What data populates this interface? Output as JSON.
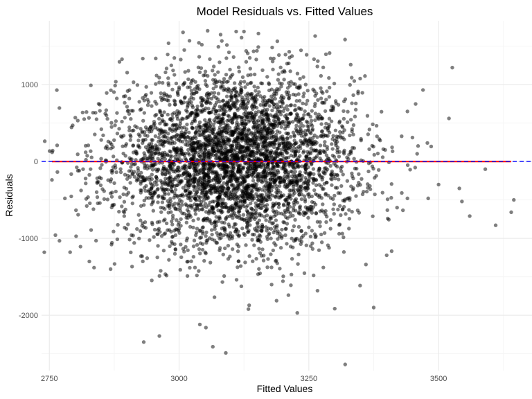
{
  "chart_data": {
    "type": "scatter",
    "title": "Model Residuals vs. Fitted Values",
    "xlabel": "Fitted Values",
    "ylabel": "Residuals",
    "xlim": [
      2735,
      3680
    ],
    "ylim": [
      -2720,
      1830
    ],
    "x_ticks": [
      2750,
      3000,
      3250,
      3500
    ],
    "y_ticks": [
      -2000,
      -1000,
      0,
      1000
    ],
    "grid": true,
    "legend": "none",
    "colors": {
      "points": "#000000",
      "smooth_line": "#ff0000",
      "reference_line": "#0000ff",
      "grid_major": "#ebebeb",
      "grid_minor": "#f5f5f5"
    },
    "reference_line": {
      "y": 0,
      "style": "dashed"
    },
    "smooth_line": {
      "x": [
        2755,
        3640
      ],
      "y": [
        0,
        0
      ]
    },
    "distribution": {
      "n": 4200,
      "x_mean": 3110,
      "x_sd": 115,
      "y_sd": 560
    },
    "points": [
      [
        2755,
        -240
      ],
      [
        2765,
        210
      ],
      [
        2780,
        -480
      ],
      [
        2790,
        -1180
      ],
      [
        2795,
        470
      ],
      [
        2800,
        570
      ],
      [
        2805,
        -120
      ],
      [
        2815,
        -100
      ],
      [
        2820,
        120
      ],
      [
        2825,
        210
      ],
      [
        2830,
        990
      ],
      [
        2835,
        -620
      ],
      [
        2840,
        -1030
      ],
      [
        2845,
        750
      ],
      [
        2850,
        280
      ],
      [
        2860,
        600
      ],
      [
        2868,
        -1400
      ],
      [
        2870,
        450
      ],
      [
        2880,
        820
      ],
      [
        2890,
        1330
      ],
      [
        2895,
        -860
      ],
      [
        2955,
        1340
      ],
      [
        2962,
        -2270
      ],
      [
        2985,
        1250
      ],
      [
        3010,
        1450
      ],
      [
        3020,
        1570
      ],
      [
        3040,
        -2120
      ],
      [
        3055,
        1700
      ],
      [
        3065,
        -2410
      ],
      [
        3080,
        1650
      ],
      [
        3090,
        -2490
      ],
      [
        3110,
        1690
      ],
      [
        3125,
        1690
      ],
      [
        3135,
        -1870
      ],
      [
        3150,
        1440
      ],
      [
        3205,
        1390
      ],
      [
        3260,
        1330
      ],
      [
        3290,
        1410
      ],
      [
        3320,
        -2640
      ],
      [
        3360,
        -1340
      ],
      [
        3375,
        -1900
      ],
      [
        3400,
        -1220
      ],
      [
        3420,
        -600
      ],
      [
        3440,
        -480
      ],
      [
        3470,
        930
      ],
      [
        3480,
        -480
      ],
      [
        3500,
        -300
      ],
      [
        3520,
        560
      ],
      [
        3540,
        -350
      ],
      [
        3545,
        -520
      ],
      [
        3560,
        -710
      ],
      [
        3590,
        -100
      ],
      [
        3610,
        -830
      ],
      [
        3640,
        -660
      ],
      [
        3645,
        -500
      ]
    ]
  }
}
